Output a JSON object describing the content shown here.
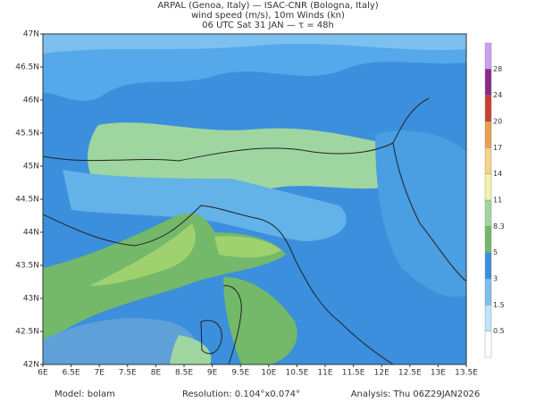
{
  "header": {
    "lines": [
      "ARPAL (Genoa, Italy)  —  ISAC-CNR (Bologna, Italy)",
      "wind speed (m/s), 10m Winds (kn)",
      "06 UTC Sat 31 JAN  —  τ = 48h"
    ]
  },
  "map": {
    "lon_labels": [
      "6E",
      "6.5E",
      "7E",
      "7.5E",
      "8E",
      "8.5E",
      "9E",
      "9.5E",
      "10E",
      "10.5E",
      "11E",
      "11.5E",
      "12E",
      "12.5E",
      "13E",
      "13.5E"
    ],
    "lat_labels": [
      "42N",
      "42.5N",
      "43N",
      "43.5N",
      "44N",
      "44.5N",
      "45N",
      "45.5N",
      "46N",
      "46.5N",
      "47N"
    ]
  },
  "colorbar": {
    "labels": [
      "0.5",
      "1.5",
      "3",
      "5",
      "8.3",
      "11",
      "14",
      "17",
      "20",
      "24",
      "28"
    ]
  },
  "footer": {
    "items": [
      "Model: bolam",
      "Resolution: 0.104°x0.074°",
      "Analysis: Thu 06Z29JAN2026"
    ]
  }
}
